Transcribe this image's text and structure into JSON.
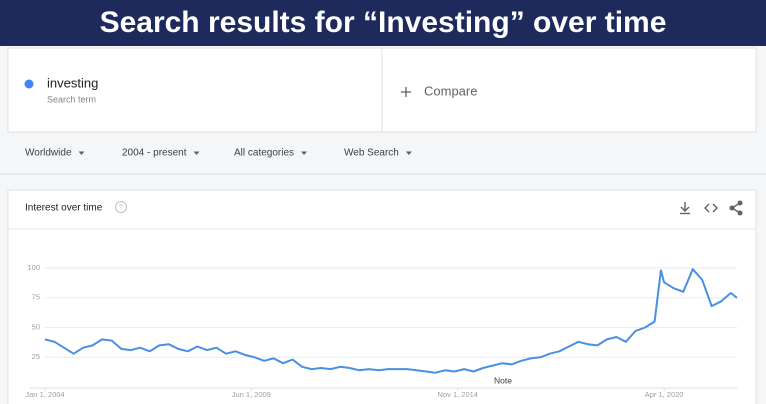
{
  "header": {
    "title": "Search results for “Investing” over time"
  },
  "search": {
    "term": "investing",
    "subtitle": "Search term"
  },
  "compare": {
    "label": "Compare"
  },
  "filters": [
    "Worldwide",
    "2004 - present",
    "All categories",
    "Web Search"
  ],
  "chart_data": {
    "type": "line",
    "title": "Interest over time",
    "annotation": "Note",
    "color": "#4a90e2",
    "grid": true,
    "x": [
      "2004-01-01",
      "2004-04-01",
      "2004-07-01",
      "2004-10-01",
      "2005-01-01",
      "2005-04-01",
      "2005-07-01",
      "2005-10-01",
      "2006-01-01",
      "2006-04-01",
      "2006-07-01",
      "2006-10-01",
      "2007-01-01",
      "2007-04-01",
      "2007-07-01",
      "2007-10-01",
      "2008-01-01",
      "2008-04-01",
      "2008-07-01",
      "2008-10-01",
      "2009-01-01",
      "2009-04-01",
      "2009-07-01",
      "2009-10-01",
      "2010-01-01",
      "2010-04-01",
      "2010-07-01",
      "2010-10-01",
      "2011-01-01",
      "2011-04-01",
      "2011-07-01",
      "2011-10-01",
      "2012-01-01",
      "2012-04-01",
      "2012-07-01",
      "2012-10-01",
      "2013-01-01",
      "2013-04-01",
      "2013-07-01",
      "2013-10-01",
      "2014-01-01",
      "2014-04-01",
      "2014-07-01",
      "2014-10-01",
      "2015-01-01",
      "2015-04-01",
      "2015-07-01",
      "2015-10-01",
      "2016-01-01",
      "2016-04-01",
      "2016-07-01",
      "2016-10-01",
      "2017-01-01",
      "2017-04-01",
      "2017-07-01",
      "2017-10-01",
      "2018-01-01",
      "2018-04-01",
      "2018-07-01",
      "2018-10-01",
      "2019-01-01",
      "2019-04-01",
      "2019-07-01",
      "2019-10-01",
      "2020-01-01",
      "2020-03-01",
      "2020-04-01",
      "2020-07-01",
      "2020-10-01",
      "2021-01-01",
      "2021-04-01",
      "2021-07-01",
      "2021-10-01",
      "2022-01-01",
      "2022-03-01"
    ],
    "values": [
      40,
      38,
      33,
      28,
      33,
      35,
      40,
      39,
      32,
      31,
      33,
      30,
      35,
      36,
      32,
      30,
      34,
      31,
      33,
      28,
      30,
      27,
      25,
      22,
      24,
      20,
      23,
      17,
      15,
      16,
      15,
      17,
      16,
      14,
      15,
      14,
      15,
      15,
      15,
      14,
      13,
      12,
      14,
      13,
      15,
      13,
      16,
      18,
      20,
      19,
      22,
      24,
      25,
      28,
      30,
      34,
      38,
      36,
      35,
      40,
      42,
      38,
      47,
      50,
      55,
      98,
      88,
      83,
      80,
      99,
      90,
      68,
      72,
      79,
      75
    ],
    "xlim": [
      "2004-01-01",
      "2022-03-01"
    ],
    "xticks": [
      {
        "value": "2004-01-01",
        "label": "Jan 1, 2004"
      },
      {
        "value": "2009-06-01",
        "label": "Jun 1, 2009"
      },
      {
        "value": "2014-11-01",
        "label": "Nov 1, 2014"
      },
      {
        "value": "2020-04-01",
        "label": "Apr 1, 2020"
      }
    ],
    "ylim": [
      0,
      100
    ],
    "yticks": [
      25,
      50,
      75,
      100
    ]
  }
}
